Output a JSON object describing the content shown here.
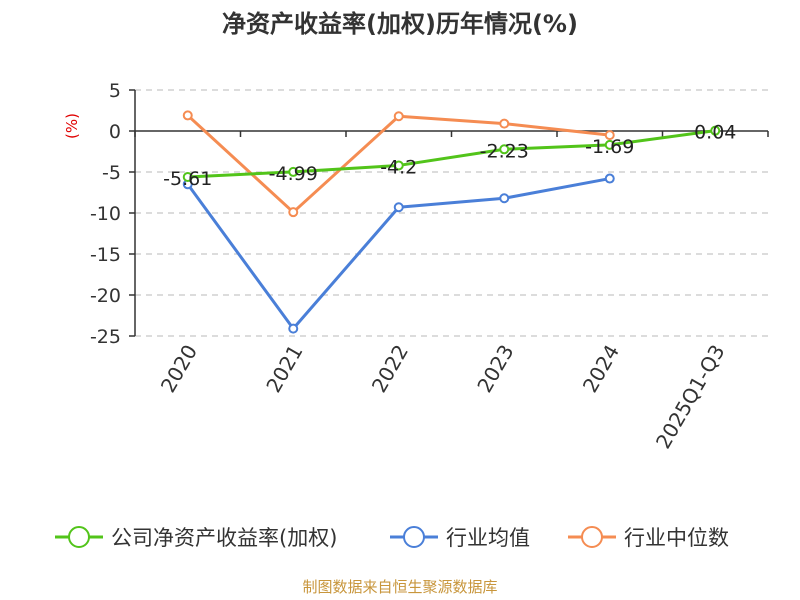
{
  "chart_data": {
    "type": "line",
    "title": "净资产收益率(加权)历年情况(%)",
    "ylabel": "(%)",
    "xlabel": "",
    "categories": [
      "2020",
      "2021",
      "2022",
      "2023",
      "2024",
      "2025Q1-Q3"
    ],
    "ylim": [
      -25,
      5
    ],
    "yticks": [
      5,
      0,
      -5,
      -10,
      -15,
      -20,
      -25
    ],
    "grid": true,
    "legend_position": "bottom",
    "series": [
      {
        "name": "公司净资产收益率(加权)",
        "color": "#52c41a",
        "values": [
          -5.61,
          -4.99,
          -4.2,
          -2.23,
          -1.69,
          0.04
        ],
        "labels": [
          "-5.61",
          "-4.99",
          "-4.2",
          "-2.23",
          "-1.69",
          "0.04"
        ]
      },
      {
        "name": "行业均值",
        "color": "#4a7fd8",
        "values": [
          -6.5,
          -24.1,
          -9.3,
          -8.2,
          -5.8,
          null
        ]
      },
      {
        "name": "行业中位数",
        "color": "#f58c52",
        "values": [
          1.9,
          -9.9,
          1.8,
          0.9,
          -0.5,
          null
        ]
      }
    ]
  },
  "footer": {
    "source": "制图数据来自恒生聚源数据库"
  }
}
